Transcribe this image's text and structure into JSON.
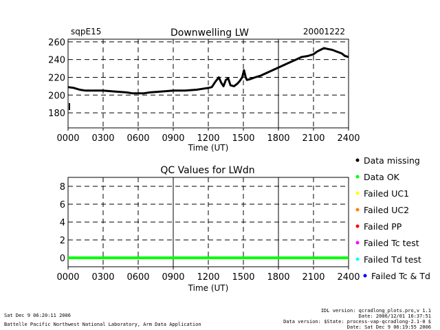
{
  "header": {
    "site": "sqpE15",
    "date": "20001222"
  },
  "chart_data": [
    {
      "type": "line",
      "title": "Downwelling LW",
      "xlabel": "Time (UT)",
      "ylabel": "",
      "x_ticks": [
        "0000",
        "0300",
        "0600",
        "0900",
        "1200",
        "1500",
        "1800",
        "2100",
        "2400"
      ],
      "y_ticks": [
        "180",
        "200",
        "220",
        "240",
        "260"
      ],
      "xlim": [
        0,
        24
      ],
      "ylim": [
        163,
        263
      ],
      "grid": true,
      "series": [
        {
          "color": "#000000",
          "x": [
            0,
            0.5,
            1,
            1.5,
            2,
            3,
            4,
            5,
            5.5,
            6,
            6.5,
            7,
            8,
            9,
            10,
            11,
            11.5,
            12,
            12.3,
            12.6,
            12.9,
            13.1,
            13.3,
            13.5,
            13.7,
            13.9,
            14.2,
            14.5,
            14.7,
            14.9,
            15.05,
            15.2,
            15.3,
            15.6,
            16,
            16.5,
            17,
            17.5,
            18,
            18.5,
            19,
            19.5,
            20,
            20.5,
            21,
            21.3,
            21.6,
            21.9,
            22.2,
            22.6,
            23,
            23.4,
            23.7,
            24
          ],
          "y": [
            209,
            208,
            206,
            205,
            205,
            205,
            204,
            203,
            202,
            202,
            202,
            203,
            204,
            205,
            205,
            206,
            207,
            208,
            209,
            215,
            220,
            214,
            210,
            217,
            219,
            211,
            210,
            213,
            216,
            220,
            228,
            220,
            217,
            218,
            220,
            222,
            225,
            228,
            231,
            234,
            237,
            240,
            243,
            244,
            246,
            249,
            251,
            253,
            252,
            251,
            249,
            247,
            244,
            243
          ]
        }
      ]
    },
    {
      "type": "scatter",
      "title": "QC Values for LWdn",
      "xlabel": "Time (UT)",
      "ylabel": "",
      "x_ticks": [
        "0000",
        "0300",
        "0600",
        "0900",
        "1200",
        "1500",
        "1800",
        "2100",
        "2400"
      ],
      "y_ticks": [
        "0",
        "2",
        "4",
        "6",
        "8"
      ],
      "xlim": [
        0,
        24
      ],
      "ylim": [
        -1,
        9
      ],
      "grid": true,
      "series": [
        {
          "color": "#00ff00",
          "x": [
            0,
            24
          ],
          "y": [
            0,
            0
          ]
        }
      ],
      "legend": [
        {
          "label": "Data missing",
          "color": "#000000"
        },
        {
          "label": "Data OK",
          "color": "#00ff00"
        },
        {
          "label": "Failed UC1",
          "color": "#ffff00"
        },
        {
          "label": "Failed UC2",
          "color": "#ff8000"
        },
        {
          "label": "Failed PP",
          "color": "#ff0000"
        },
        {
          "label": "Failed Tc test",
          "color": "#ff00ff"
        },
        {
          "label": "Failed Td test",
          "color": "#00ffff"
        },
        {
          "label": "Failed Tc & Td",
          "color": "#0000ff"
        }
      ]
    }
  ],
  "footer": {
    "run_date": "Sat Dec  9 06:20:11 2006",
    "lab": "Battelle Pacific Northwest National Laboratory, Arm Data Application",
    "idl_version": "IDL version: qcradlong_plots.pro,v 1.1",
    "idl_date": "Date: 2006/12/01 16:37:51",
    "data_version": "Data version: $State: process-vap-qcradlong-2.1-0 $",
    "data_date": "Date: Sat Dec  9 06:19:55 2006"
  }
}
